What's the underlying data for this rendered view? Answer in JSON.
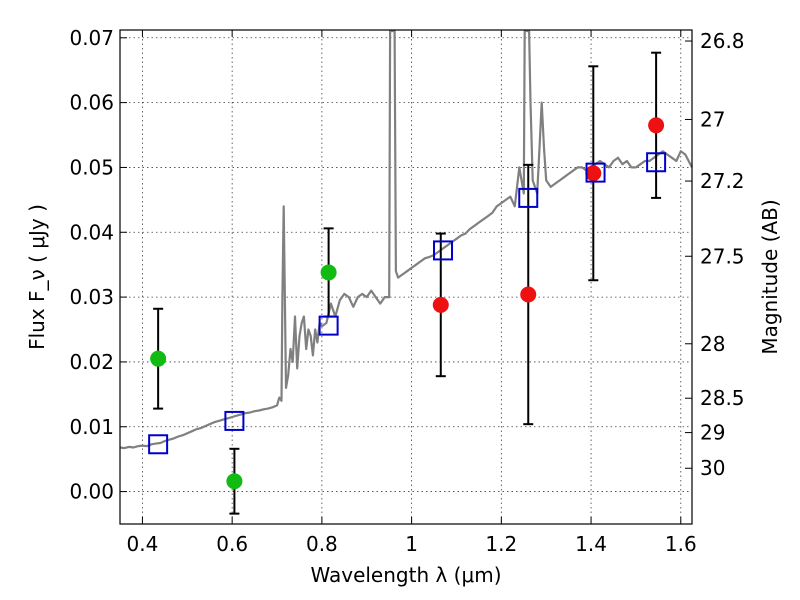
{
  "chart_data": {
    "type": "scatter",
    "title": "",
    "xlabel": "Wavelength  λ (μm)",
    "ylabel": "Flux  F_ν  ( μJy )",
    "ylabel_right": "Magnitude (AB)",
    "xlim": [
      0.35,
      1.625
    ],
    "ylim": [
      -0.005,
      0.0712
    ],
    "grid": true,
    "x_ticks": [
      0.4,
      0.6,
      0.8,
      1.0,
      1.2,
      1.4,
      1.6
    ],
    "x_tick_labels": [
      "0.4",
      "0.6",
      "0.8",
      "1",
      "1.2",
      "1.4",
      "1.6"
    ],
    "y_ticks": [
      0.0,
      0.01,
      0.02,
      0.03,
      0.04,
      0.05,
      0.06,
      0.07
    ],
    "y_tick_labels": [
      "0.00",
      "0.01",
      "0.02",
      "0.03",
      "0.04",
      "0.05",
      "0.06",
      "0.07"
    ],
    "right_ticks": [
      {
        "label": "26.8",
        "flux": 0.0695
      },
      {
        "label": "27",
        "flux": 0.0574
      },
      {
        "label": "27.2",
        "flux": 0.0479
      },
      {
        "label": "27.5",
        "flux": 0.0363
      },
      {
        "label": "28",
        "flux": 0.0228
      },
      {
        "label": "28.5",
        "flux": 0.0144
      },
      {
        "label": "29",
        "flux": 0.0091
      },
      {
        "label": "30",
        "flux": 0.0036
      }
    ],
    "colors": {
      "spectrum": "#808080",
      "green_points": "#11bb11",
      "red_points": "#ee1111",
      "model_squares": "#0000cc",
      "errorbars": "#000000"
    },
    "series": [
      {
        "kind": "spectrum",
        "x": [
          0.35,
          0.36,
          0.37,
          0.38,
          0.39,
          0.4,
          0.41,
          0.42,
          0.43,
          0.44,
          0.45,
          0.46,
          0.47,
          0.48,
          0.49,
          0.5,
          0.51,
          0.52,
          0.53,
          0.54,
          0.55,
          0.56,
          0.57,
          0.58,
          0.59,
          0.6,
          0.61,
          0.62,
          0.63,
          0.64,
          0.65,
          0.66,
          0.67,
          0.68,
          0.69,
          0.7,
          0.705,
          0.71,
          0.712,
          0.715,
          0.72,
          0.725,
          0.73,
          0.735,
          0.74,
          0.745,
          0.75,
          0.755,
          0.76,
          0.765,
          0.77,
          0.775,
          0.78,
          0.785,
          0.79,
          0.795,
          0.8,
          0.81,
          0.82,
          0.83,
          0.84,
          0.85,
          0.86,
          0.87,
          0.88,
          0.89,
          0.9,
          0.91,
          0.92,
          0.93,
          0.94,
          0.95,
          0.952,
          0.955,
          0.958,
          0.96,
          0.962,
          0.965,
          0.97,
          0.98,
          0.99,
          1.0,
          1.01,
          1.02,
          1.03,
          1.04,
          1.05,
          1.06,
          1.07,
          1.08,
          1.09,
          1.1,
          1.11,
          1.12,
          1.13,
          1.14,
          1.15,
          1.16,
          1.17,
          1.18,
          1.19,
          1.2,
          1.21,
          1.22,
          1.23,
          1.24,
          1.25,
          1.252,
          1.255,
          1.258,
          1.26,
          1.262,
          1.265,
          1.27,
          1.28,
          1.285,
          1.29,
          1.295,
          1.3,
          1.31,
          1.32,
          1.33,
          1.34,
          1.35,
          1.36,
          1.37,
          1.38,
          1.39,
          1.4,
          1.41,
          1.42,
          1.43,
          1.44,
          1.45,
          1.46,
          1.47,
          1.48,
          1.49,
          1.5,
          1.51,
          1.52,
          1.53,
          1.54,
          1.55,
          1.56,
          1.57,
          1.58,
          1.59,
          1.6,
          1.61,
          1.625
        ],
        "y": [
          0.0068,
          0.0067,
          0.0069,
          0.0068,
          0.007,
          0.0071,
          0.007,
          0.0073,
          0.0074,
          0.0075,
          0.0078,
          0.008,
          0.0082,
          0.0085,
          0.0087,
          0.009,
          0.0093,
          0.0096,
          0.0098,
          0.0101,
          0.0104,
          0.0107,
          0.0109,
          0.0111,
          0.0113,
          0.0115,
          0.0117,
          0.0119,
          0.0121,
          0.0122,
          0.0124,
          0.0125,
          0.0127,
          0.0128,
          0.013,
          0.0133,
          0.0145,
          0.014,
          0.03,
          0.044,
          0.016,
          0.018,
          0.022,
          0.02,
          0.027,
          0.019,
          0.024,
          0.026,
          0.027,
          0.022,
          0.025,
          0.024,
          0.021,
          0.025,
          0.023,
          0.026,
          0.0255,
          0.026,
          0.029,
          0.027,
          0.0295,
          0.0305,
          0.03,
          0.0285,
          0.03,
          0.0305,
          0.03,
          0.031,
          0.03,
          0.029,
          0.03,
          0.03,
          0.072,
          0.072,
          0.072,
          0.072,
          0.072,
          0.034,
          0.033,
          0.0335,
          0.034,
          0.0345,
          0.035,
          0.0355,
          0.036,
          0.0362,
          0.0365,
          0.037,
          0.0375,
          0.038,
          0.0385,
          0.039,
          0.0395,
          0.0398,
          0.0405,
          0.041,
          0.0415,
          0.042,
          0.0425,
          0.043,
          0.044,
          0.0445,
          0.045,
          0.0455,
          0.044,
          0.05,
          0.046,
          0.072,
          0.072,
          0.072,
          0.072,
          0.072,
          0.06,
          0.048,
          0.046,
          0.053,
          0.06,
          0.053,
          0.048,
          0.047,
          0.0475,
          0.048,
          0.0485,
          0.049,
          0.0495,
          0.05,
          0.05,
          0.0495,
          0.05,
          0.0505,
          0.051,
          0.0505,
          0.05,
          0.051,
          0.0515,
          0.0505,
          0.051,
          0.05,
          0.05,
          0.0505,
          0.051,
          0.051,
          0.0515,
          0.052,
          0.0525,
          0.052,
          0.0515,
          0.051,
          0.0525,
          0.052,
          0.05
        ]
      },
      {
        "kind": "model",
        "x": [
          0.435,
          0.605,
          0.815,
          1.07,
          1.26,
          1.41,
          1.545
        ],
        "y": [
          0.0073,
          0.0109,
          0.0256,
          0.0372,
          0.0453,
          0.0492,
          0.0508
        ]
      },
      {
        "kind": "green",
        "x": [
          0.435,
          0.605,
          0.815
        ],
        "y": [
          0.0205,
          0.0016,
          0.0338
        ],
        "err": [
          0.0077,
          0.005,
          0.0068
        ]
      },
      {
        "kind": "red",
        "x": [
          1.065,
          1.26,
          1.405,
          1.545
        ],
        "y": [
          0.0288,
          0.0304,
          0.0491,
          0.0565
        ],
        "err": [
          0.011,
          0.02,
          0.0165,
          0.0112
        ]
      }
    ]
  }
}
